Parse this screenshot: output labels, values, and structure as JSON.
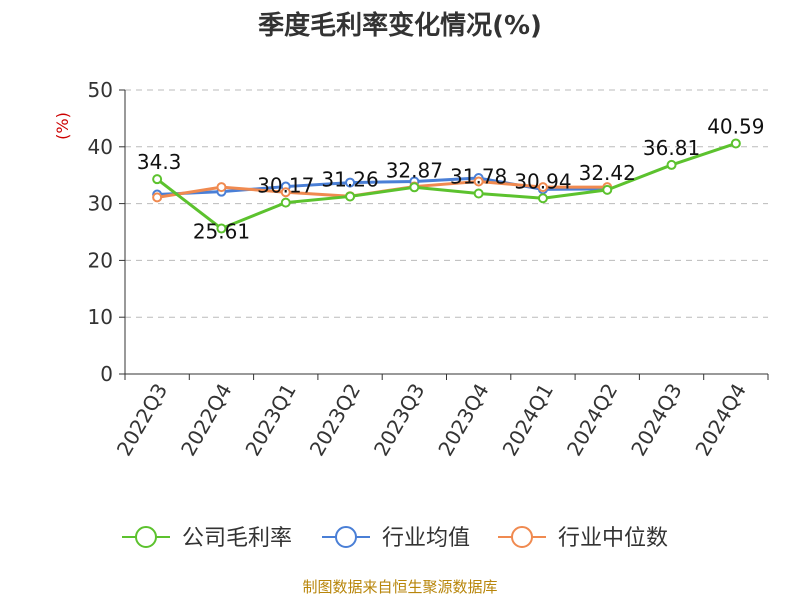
{
  "chart_data": {
    "type": "line",
    "title": "季度毛利率变化情况(%)",
    "ylabel": "(%)",
    "xlabel": "",
    "ylim": [
      0,
      50
    ],
    "yticks": [
      0,
      10,
      20,
      30,
      40,
      50
    ],
    "grid": true,
    "legend_position": "bottom",
    "categories": [
      "2022Q3",
      "2022Q4",
      "2023Q1",
      "2023Q2",
      "2023Q3",
      "2023Q4",
      "2024Q1",
      "2024Q2",
      "2024Q3",
      "2024Q4"
    ],
    "series": [
      {
        "name": "公司毛利率",
        "color": "#5cc22e",
        "values": [
          34.3,
          25.61,
          30.17,
          31.26,
          32.87,
          31.78,
          30.94,
          32.42,
          36.81,
          40.59
        ],
        "labels": [
          "34.3",
          "25.61",
          "30.17",
          "31.26",
          "32.87",
          "31.78",
          "30.94",
          "32.42",
          "36.81",
          "40.59"
        ]
      },
      {
        "name": "行业均值",
        "color": "#4a7fd6",
        "values": [
          31.6,
          32.1,
          33.0,
          33.7,
          33.9,
          34.5,
          32.5,
          32.6,
          null,
          null
        ]
      },
      {
        "name": "行业中位数",
        "color": "#f08a50",
        "values": [
          31.1,
          32.9,
          32.0,
          31.3,
          33.0,
          33.9,
          32.9,
          32.9,
          null,
          null
        ]
      }
    ]
  },
  "footer": {
    "source": "制图数据来自恒生聚源数据库"
  }
}
